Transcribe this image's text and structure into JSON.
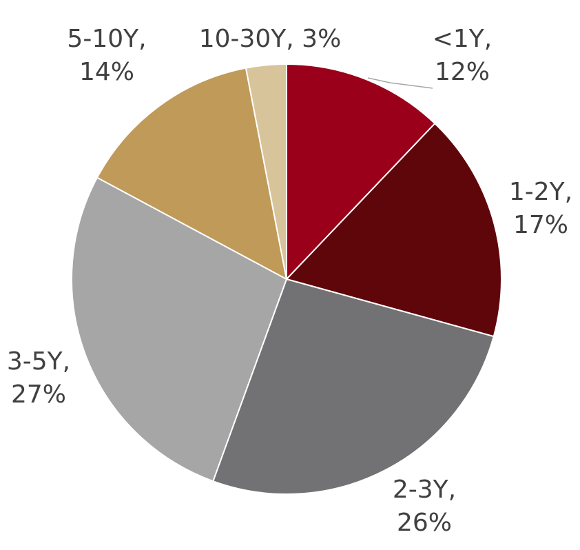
{
  "chart_data": {
    "type": "pie",
    "categories": [
      "<1Y",
      "1-2Y",
      "2-3Y",
      "3-5Y",
      "5-10Y",
      "10-30Y"
    ],
    "values": [
      12,
      17,
      26,
      27,
      14,
      3
    ],
    "colors": [
      "#9a0019",
      "#5f060a",
      "#727274",
      "#a6a6a6",
      "#c09a59",
      "#d8c49b"
    ],
    "labels": [
      {
        "lines": [
          "<1Y,",
          "12%"
        ]
      },
      {
        "lines": [
          "1-2Y,",
          "17%"
        ]
      },
      {
        "lines": [
          "2-3Y,",
          "26%"
        ]
      },
      {
        "lines": [
          "3-5Y,",
          "27%"
        ]
      },
      {
        "lines": [
          "5-10Y,",
          "14%"
        ]
      },
      {
        "lines": [
          "10-30Y, 3%"
        ]
      }
    ],
    "start_angle_deg": 0,
    "direction": "clockwise"
  }
}
